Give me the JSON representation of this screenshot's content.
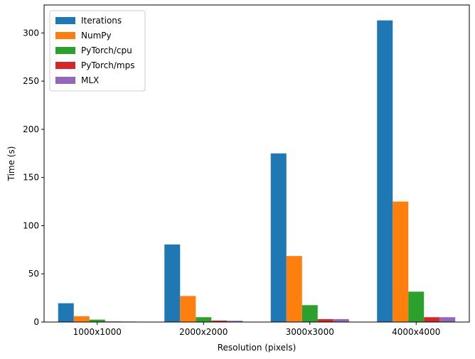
{
  "chart_data": {
    "type": "bar",
    "title": "",
    "xlabel": "Resolution (pixels)",
    "ylabel": "Time (s)",
    "categories": [
      "1000x1000",
      "2000x2000",
      "3000x3000",
      "4000x4000"
    ],
    "ylim": [
      0,
      329
    ],
    "yticks": [
      0,
      50,
      100,
      150,
      200,
      250,
      300
    ],
    "grid": false,
    "legend_position": "top-left",
    "series": [
      {
        "name": "Iterations",
        "color": "#1f77b4",
        "values": [
          19.5,
          80.5,
          175.0,
          313.0
        ]
      },
      {
        "name": "NumPy",
        "color": "#ff7f0e",
        "values": [
          6.0,
          27.0,
          68.5,
          125.0
        ]
      },
      {
        "name": "PyTorch/cpu",
        "color": "#2ca02c",
        "values": [
          2.5,
          5.0,
          17.5,
          31.5
        ]
      },
      {
        "name": "PyTorch/mps",
        "color": "#d62728",
        "values": [
          0.6,
          1.5,
          3.0,
          5.0
        ]
      },
      {
        "name": "MLX",
        "color": "#9467bd",
        "values": [
          0.5,
          1.3,
          3.0,
          5.0
        ]
      }
    ]
  }
}
